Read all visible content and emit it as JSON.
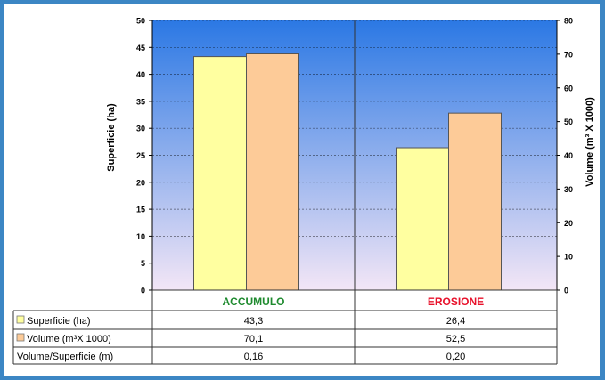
{
  "chart_data": {
    "type": "bar",
    "categories": [
      "ACCUMULO",
      "EROSIONE"
    ],
    "category_colors": [
      "#1e8a2e",
      "#e8102a"
    ],
    "series": [
      {
        "name": "Superficie (ha)",
        "axis": "left",
        "values": [
          43.3,
          26.4
        ],
        "labels": [
          "43,3",
          "26,4"
        ],
        "color": "#ffffa0"
      },
      {
        "name": "Volume (m³X 1000)",
        "axis": "right",
        "values": [
          70.1,
          52.5
        ],
        "labels": [
          "70,1",
          "52,5"
        ],
        "color": "#fdcb98"
      }
    ],
    "extra_rows": [
      {
        "name": "Volume/Superficie (m)",
        "labels": [
          "0,16",
          "0,20"
        ]
      }
    ],
    "ylabel_left": "Superficie (ha)",
    "ylabel_right": "Volume (m³ X 1000)",
    "ylim_left": [
      0,
      50
    ],
    "ylim_right": [
      0,
      80
    ],
    "yticks_left": [
      "0",
      "5",
      "10",
      "15",
      "20",
      "25",
      "30",
      "35",
      "40",
      "45",
      "50"
    ],
    "yticks_right": [
      "0",
      "10",
      "20",
      "30",
      "40",
      "50",
      "60",
      "70",
      "80"
    ],
    "grid": true,
    "background_gradient": [
      "#2b78e4",
      "#f3e6f6"
    ]
  }
}
